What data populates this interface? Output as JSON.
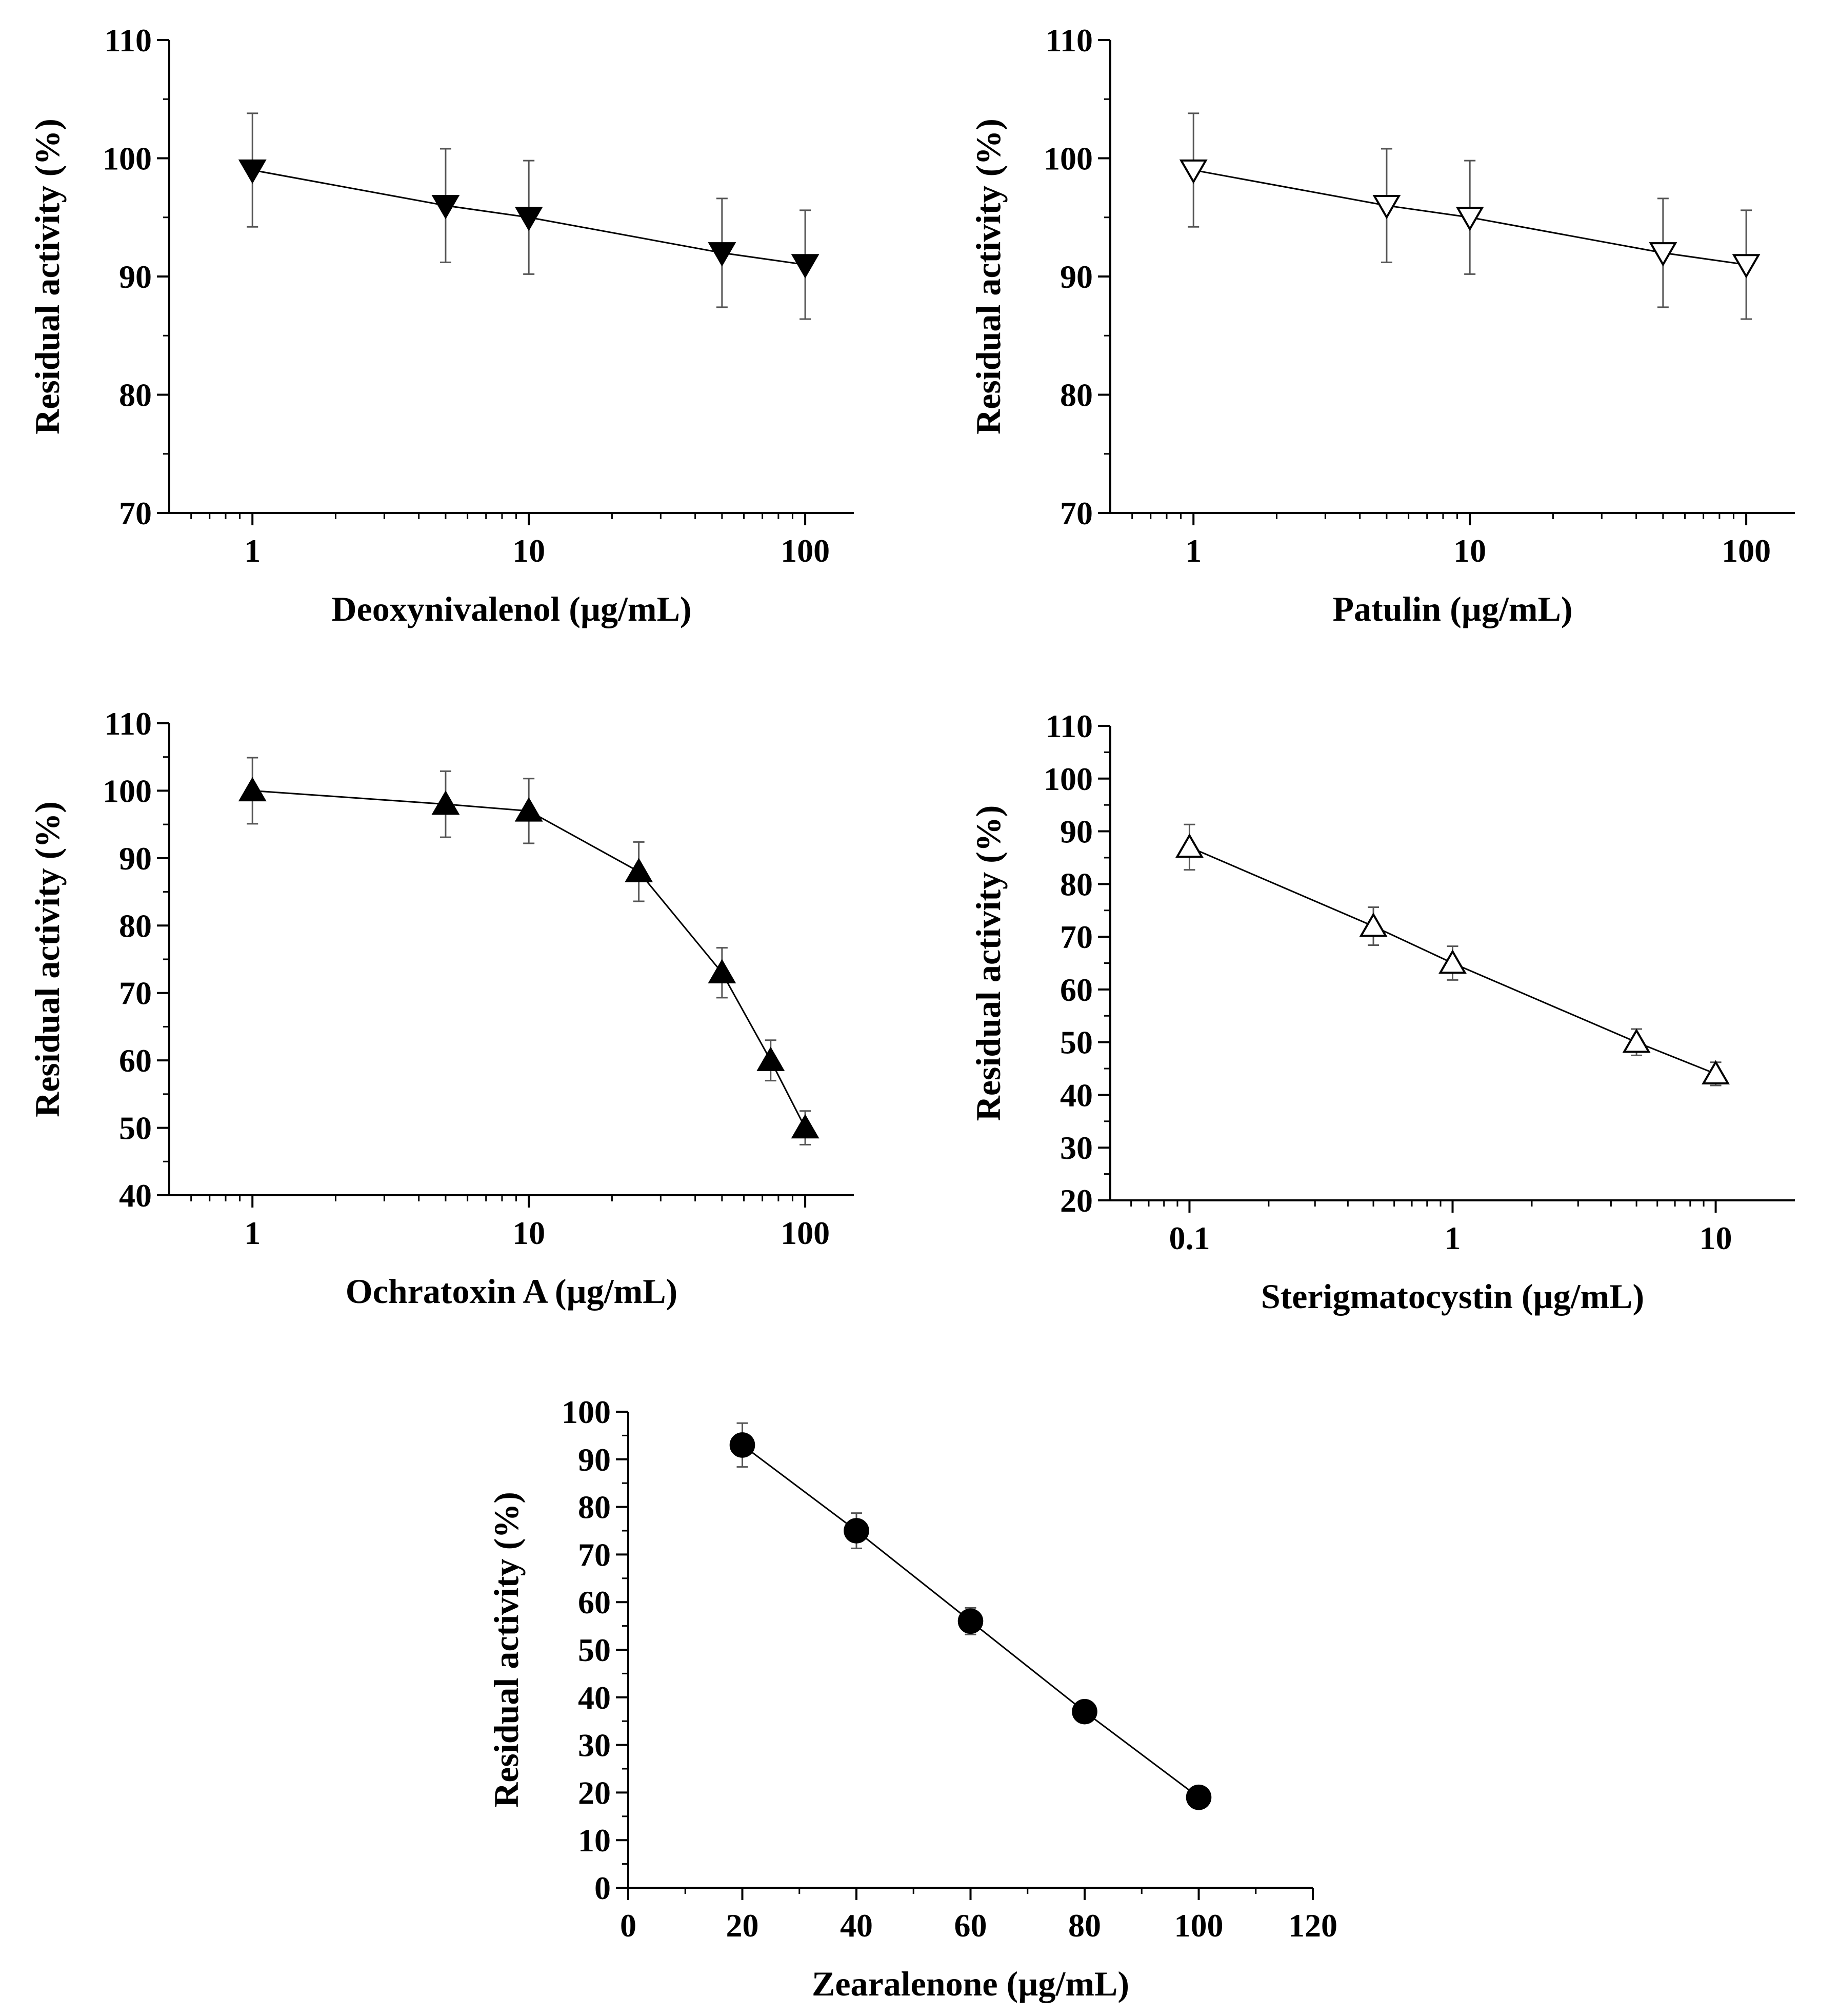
{
  "figure": {
    "colors": {
      "ink": "#000000",
      "background": "#ffffff",
      "error_bar": "#555555"
    }
  },
  "chart_data": [
    {
      "id": "deoxynivalenol",
      "type": "line",
      "xscale": "log",
      "xlim": [
        0.5,
        150
      ],
      "ylim": [
        70,
        110
      ],
      "xticks": [
        1,
        10,
        100
      ],
      "xtick_labels": [
        "1",
        "10",
        "100"
      ],
      "yticks": [
        70,
        80,
        90,
        100,
        110
      ],
      "ytick_labels": [
        "70",
        "80",
        "90",
        "100",
        "110"
      ],
      "xlabel": "Deoxynivalenol  (µg/mL)",
      "ylabel": "Residual activity (%)",
      "marker": "triangle-down-filled",
      "series": [
        {
          "name": "Deoxynivalenol",
          "x": [
            1,
            5,
            10,
            50,
            100
          ],
          "y": [
            99,
            96,
            95,
            92,
            91
          ],
          "error": [
            4.8,
            4.8,
            4.8,
            4.6,
            4.6
          ]
        }
      ]
    },
    {
      "id": "patulin",
      "type": "line",
      "xscale": "log",
      "xlim": [
        0.5,
        150
      ],
      "ylim": [
        70,
        110
      ],
      "xticks": [
        1,
        10,
        100
      ],
      "xtick_labels": [
        "1",
        "10",
        "100"
      ],
      "yticks": [
        70,
        80,
        90,
        100,
        110
      ],
      "ytick_labels": [
        "70",
        "80",
        "90",
        "100",
        "110"
      ],
      "xlabel": "Patulin  (µg/mL)",
      "ylabel": "Residual activity (%)",
      "marker": "triangle-down-open",
      "series": [
        {
          "name": "Patulin",
          "x": [
            1,
            5,
            10,
            50,
            100
          ],
          "y": [
            99,
            96,
            95,
            92,
            91
          ],
          "error": [
            4.8,
            4.8,
            4.8,
            4.6,
            4.6
          ]
        }
      ]
    },
    {
      "id": "ochratoxin-a",
      "type": "line",
      "xscale": "log",
      "xlim": [
        0.5,
        150
      ],
      "ylim": [
        40,
        110
      ],
      "xticks": [
        1,
        10,
        100
      ],
      "xtick_labels": [
        "1",
        "10",
        "100"
      ],
      "yticks": [
        40,
        50,
        60,
        70,
        80,
        90,
        100,
        110
      ],
      "ytick_labels": [
        "40",
        "50",
        "60",
        "70",
        "80",
        "90",
        "100",
        "110"
      ],
      "xlabel": "Ochratoxin A (µg/mL)",
      "ylabel": "Residual activity (%)",
      "marker": "triangle-up-filled",
      "series": [
        {
          "name": "Ochratoxin A",
          "x": [
            1,
            5,
            10,
            25,
            50,
            75,
            100
          ],
          "y": [
            100,
            98,
            97,
            88,
            73,
            60,
            50
          ],
          "error": [
            4.9,
            4.9,
            4.8,
            4.4,
            3.7,
            3.0,
            2.5
          ]
        }
      ]
    },
    {
      "id": "sterigmatocystin",
      "type": "line",
      "xscale": "log",
      "xlim": [
        0.05,
        20
      ],
      "ylim": [
        20,
        110
      ],
      "xticks": [
        0.1,
        1,
        10
      ],
      "xtick_labels": [
        "0.1",
        "1",
        "10"
      ],
      "yticks": [
        20,
        30,
        40,
        50,
        60,
        70,
        80,
        90,
        100,
        110
      ],
      "ytick_labels": [
        "20",
        "30",
        "40",
        "50",
        "60",
        "70",
        "80",
        "90",
        "100",
        "110"
      ],
      "xlabel": "Sterigmatocystin (µg/mL)",
      "ylabel": "Residual activity (%)",
      "marker": "triangle-up-open",
      "series": [
        {
          "name": "Sterigmatocystin",
          "x": [
            0.1,
            0.5,
            1,
            5,
            10
          ],
          "y": [
            87,
            72,
            65,
            50,
            44
          ],
          "error": [
            4.3,
            3.6,
            3.2,
            2.5,
            2.2
          ]
        }
      ]
    },
    {
      "id": "zearalenone",
      "type": "line",
      "xscale": "linear",
      "xlim": [
        0,
        120
      ],
      "ylim": [
        0,
        100
      ],
      "xticks": [
        0,
        20,
        40,
        60,
        80,
        100,
        120
      ],
      "xtick_labels": [
        "0",
        "20",
        "40",
        "60",
        "80",
        "100",
        "120"
      ],
      "yticks": [
        0,
        10,
        20,
        30,
        40,
        50,
        60,
        70,
        80,
        90,
        100
      ],
      "ytick_labels": [
        "0",
        "10",
        "20",
        "30",
        "40",
        "50",
        "60",
        "70",
        "80",
        "90",
        "100"
      ],
      "xlabel": "Zearalenone  (µg/mL)",
      "ylabel": "Residual activity (%)",
      "marker": "circle-filled",
      "series": [
        {
          "name": "Zearalenone",
          "x": [
            20,
            40,
            60,
            80,
            100
          ],
          "y": [
            93,
            75,
            56,
            37,
            19
          ],
          "error": [
            4.6,
            3.7,
            2.8,
            1.8,
            0.9
          ]
        }
      ]
    }
  ]
}
